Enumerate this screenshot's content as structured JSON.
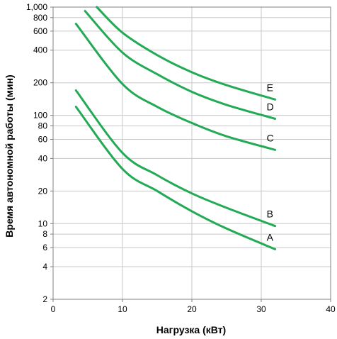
{
  "chart_data": {
    "type": "line",
    "title": "",
    "xlabel": "Нагрузка (кВт)",
    "ylabel": "Время автономной работы (мин)",
    "xlim": [
      0,
      40
    ],
    "ylim": [
      2,
      1000
    ],
    "yscale": "log",
    "grid": true,
    "legend": "none",
    "line_color": "#22aa55",
    "grid_color": "#c8c8c8",
    "x_ticks": [
      {
        "value": 0,
        "label": "0"
      },
      {
        "value": 10,
        "label": "10"
      },
      {
        "value": 20,
        "label": "20"
      },
      {
        "value": 30,
        "label": "30"
      },
      {
        "value": 40,
        "label": "40"
      }
    ],
    "y_ticks": [
      {
        "value": 1000,
        "label": "1,000"
      },
      {
        "value": 800,
        "label": "800"
      },
      {
        "value": 600,
        "label": "600"
      },
      {
        "value": 400,
        "label": "400"
      },
      {
        "value": 200,
        "label": "200"
      },
      {
        "value": 100,
        "label": "100"
      },
      {
        "value": 80,
        "label": "80"
      },
      {
        "value": 60,
        "label": "60"
      },
      {
        "value": 40,
        "label": "40"
      },
      {
        "value": 20,
        "label": "20"
      },
      {
        "value": 10,
        "label": "10"
      },
      {
        "value": 8,
        "label": "8"
      },
      {
        "value": 6,
        "label": "6"
      },
      {
        "value": 4,
        "label": "4"
      },
      {
        "value": 2,
        "label": "2"
      }
    ],
    "series": [
      {
        "name": "E",
        "points": [
          [
            6.3,
            1000
          ],
          [
            10,
            580
          ],
          [
            15,
            360
          ],
          [
            20,
            250
          ],
          [
            25,
            190
          ],
          [
            32,
            140
          ]
        ]
      },
      {
        "name": "D",
        "points": [
          [
            4.6,
            920
          ],
          [
            10,
            380
          ],
          [
            15,
            240
          ],
          [
            20,
            165
          ],
          [
            25,
            125
          ],
          [
            32,
            93
          ]
        ]
      },
      {
        "name": "C",
        "points": [
          [
            3.3,
            700
          ],
          [
            10,
            195
          ],
          [
            15,
            120
          ],
          [
            20,
            85
          ],
          [
            25,
            64
          ],
          [
            32,
            48
          ]
        ]
      },
      {
        "name": "B",
        "points": [
          [
            3.3,
            170
          ],
          [
            10,
            45
          ],
          [
            15,
            28
          ],
          [
            20,
            19
          ],
          [
            25,
            14
          ],
          [
            32,
            9.5
          ]
        ]
      },
      {
        "name": "A",
        "points": [
          [
            3.3,
            120
          ],
          [
            10,
            32
          ],
          [
            15,
            20
          ],
          [
            20,
            13
          ],
          [
            25,
            9
          ],
          [
            32,
            5.8
          ]
        ]
      }
    ]
  }
}
